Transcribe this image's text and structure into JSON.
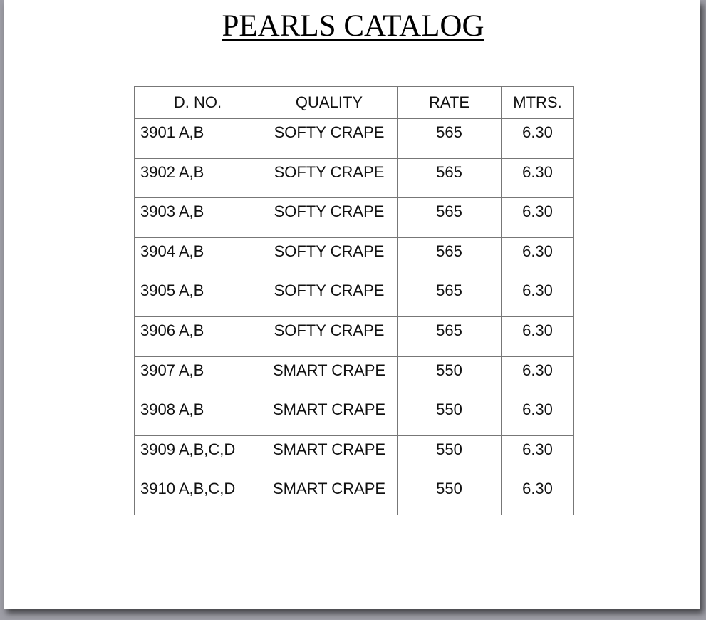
{
  "title": "PEARLS CATALOG",
  "table": {
    "headers": [
      "D. NO.",
      "QUALITY",
      "RATE",
      "MTRS."
    ],
    "rows": [
      [
        "3901 A,B",
        "SOFTY CRAPE",
        "565",
        "6.30"
      ],
      [
        "3902 A,B",
        "SOFTY CRAPE",
        "565",
        "6.30"
      ],
      [
        "3903 A,B",
        "SOFTY CRAPE",
        "565",
        "6.30"
      ],
      [
        "3904 A,B",
        "SOFTY CRAPE",
        "565",
        "6.30"
      ],
      [
        "3905 A,B",
        "SOFTY CRAPE",
        "565",
        "6.30"
      ],
      [
        "3906 A,B",
        "SOFTY CRAPE",
        "565",
        "6.30"
      ],
      [
        "3907 A,B",
        "SMART CRAPE",
        "550",
        "6.30"
      ],
      [
        "3908 A,B",
        "SMART CRAPE",
        "550",
        "6.30"
      ],
      [
        "3909 A,B,C,D",
        "SMART CRAPE",
        "550",
        "6.30"
      ],
      [
        "3910 A,B,C,D",
        "SMART CRAPE",
        "550",
        "6.30"
      ]
    ]
  }
}
